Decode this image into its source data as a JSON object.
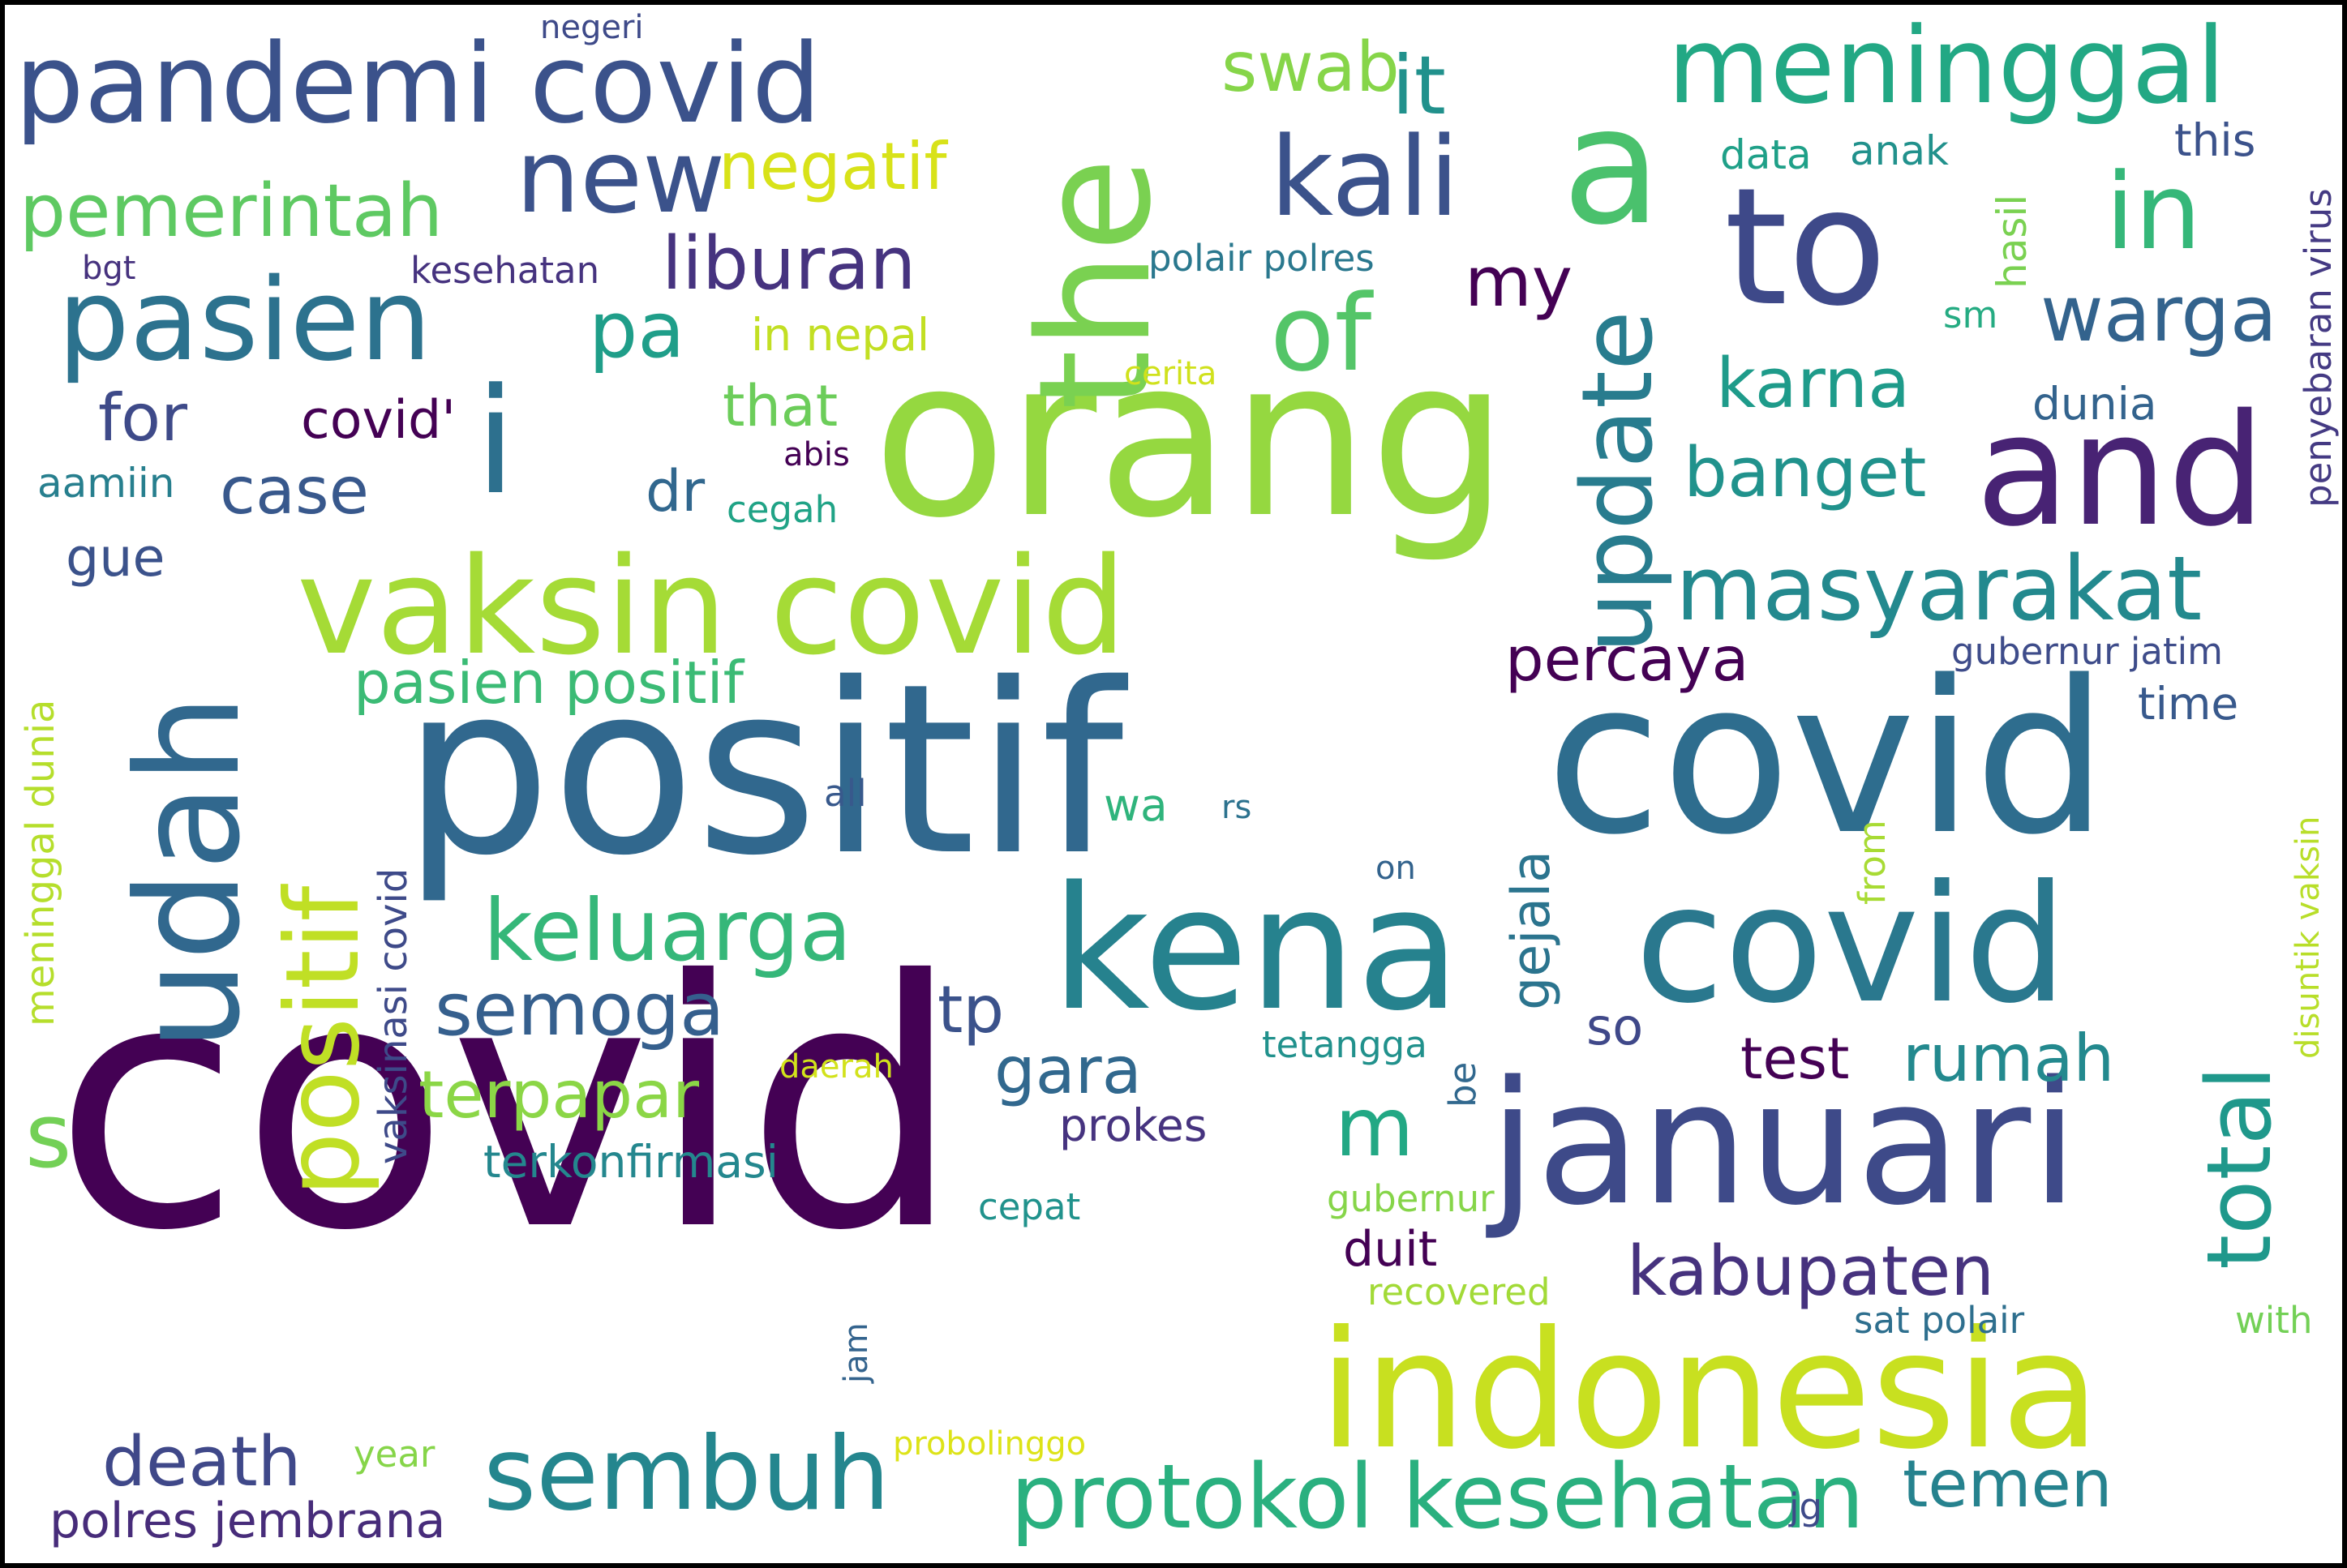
{
  "words": [
    {
      "text": "covid",
      "color": "#440154"
    },
    {
      "text": "positif",
      "color": "#31688e"
    },
    {
      "text": "covid",
      "color": "#2e6d8e"
    },
    {
      "text": "orang",
      "color": "#95d840"
    },
    {
      "text": "kena",
      "color": "#26828e"
    },
    {
      "text": "covid",
      "color": "#2a788e"
    },
    {
      "text": "januari",
      "color": "#3e4a89"
    },
    {
      "text": "indonesia",
      "color": "#c8e020"
    },
    {
      "text": "vaksin covid",
      "color": "#a5db36"
    },
    {
      "text": "pandemi covid",
      "color": "#3b528b"
    },
    {
      "text": "the",
      "color": "#7ad151"
    },
    {
      "text": "udah",
      "color": "#31688e"
    },
    {
      "text": "and",
      "color": "#482374"
    },
    {
      "text": "to",
      "color": "#3e4989"
    },
    {
      "text": "a",
      "color": "#4ac16d"
    },
    {
      "text": "meninggal",
      "color": "#22a884"
    },
    {
      "text": "i",
      "color": "#2d708e"
    },
    {
      "text": "pasien",
      "color": "#2c728e"
    },
    {
      "text": "new",
      "color": "#3b528b"
    },
    {
      "text": "kali",
      "color": "#3b528b"
    },
    {
      "text": "in",
      "color": "#35b779"
    },
    {
      "text": "of",
      "color": "#54c568"
    },
    {
      "text": "update",
      "color": "#287c8e"
    },
    {
      "text": "positif",
      "color": "#c0df25"
    },
    {
      "text": "keluarga",
      "color": "#35b779"
    },
    {
      "text": "sembuh",
      "color": "#24868e"
    },
    {
      "text": "protokol kesehatan",
      "color": "#2ab07f"
    },
    {
      "text": "masyarakat",
      "color": "#23898e"
    },
    {
      "text": "total",
      "color": "#1f988b"
    },
    {
      "text": "warga",
      "color": "#33638d"
    },
    {
      "text": "pemerintah",
      "color": "#5ec962"
    },
    {
      "text": "it",
      "color": "#21918c"
    },
    {
      "text": "swab",
      "color": "#86d549"
    },
    {
      "text": "negatif",
      "color": "#d8e219"
    },
    {
      "text": "liburan",
      "color": "#46337f"
    },
    {
      "text": "pa",
      "color": "#1f9e89"
    },
    {
      "text": "my",
      "color": "#440154"
    },
    {
      "text": "karna",
      "color": "#1e9b8a"
    },
    {
      "text": "banget",
      "color": "#20928c"
    },
    {
      "text": "for",
      "color": "#3e4a89"
    },
    {
      "text": "covid'",
      "color": "#440154"
    },
    {
      "text": "case",
      "color": "#38588c"
    },
    {
      "text": "dr",
      "color": "#31678e"
    },
    {
      "text": "pasien positif",
      "color": "#3bbb75"
    },
    {
      "text": "percaya",
      "color": "#440154"
    },
    {
      "text": "semoga",
      "color": "#355f8d"
    },
    {
      "text": "terpapar",
      "color": "#8bd646"
    },
    {
      "text": "gara",
      "color": "#31688e"
    },
    {
      "text": "tp",
      "color": "#3b528b"
    },
    {
      "text": "m",
      "color": "#22a884"
    },
    {
      "text": "gejala",
      "color": "#2b748e"
    },
    {
      "text": "death",
      "color": "#3f4889"
    },
    {
      "text": "s",
      "color": "#73d056"
    },
    {
      "text": "kabupaten",
      "color": "#46327e"
    },
    {
      "text": "test",
      "color": "#440154"
    },
    {
      "text": "rumah",
      "color": "#23898e"
    },
    {
      "text": "temen",
      "color": "#26828e"
    },
    {
      "text": "so",
      "color": "#3f4889"
    },
    {
      "text": "terkonfirmasi",
      "color": "#24878e"
    },
    {
      "text": "prokes",
      "color": "#46337f"
    },
    {
      "text": "polres jembrana",
      "color": "#472c7a"
    },
    {
      "text": "data",
      "color": "#1fa088"
    },
    {
      "text": "anak",
      "color": "#21918c"
    },
    {
      "text": "this",
      "color": "#3b528b"
    },
    {
      "text": "penyebaran virus",
      "color": "#443a83"
    },
    {
      "text": "hasil",
      "color": "#7ad151"
    },
    {
      "text": "sm",
      "color": "#25ab82"
    },
    {
      "text": "dunia",
      "color": "#33638d"
    },
    {
      "text": "gubernur jatim",
      "color": "#3e4c8a"
    },
    {
      "text": "time",
      "color": "#38598c"
    },
    {
      "text": "polair polres",
      "color": "#2a788e"
    },
    {
      "text": "in nepal",
      "color": "#c2df23"
    },
    {
      "text": "that",
      "color": "#6ccd5a"
    },
    {
      "text": "cerita",
      "color": "#d0e11c"
    },
    {
      "text": "kesehatan",
      "color": "#46337f"
    },
    {
      "text": "bgt",
      "color": "#46327e"
    },
    {
      "text": "negeri",
      "color": "#3e4a89"
    },
    {
      "text": "abis",
      "color": "#440154"
    },
    {
      "text": "cegah",
      "color": "#20a386"
    },
    {
      "text": "aamiin",
      "color": "#277f8e"
    },
    {
      "text": "gue",
      "color": "#3b528b"
    },
    {
      "text": "meninggal dunia",
      "color": "#b5de2b"
    },
    {
      "text": "vaksinasi covid",
      "color": "#3e4a89"
    },
    {
      "text": "all",
      "color": "#38598c"
    },
    {
      "text": "wa",
      "color": "#2fb47c"
    },
    {
      "text": "rs",
      "color": "#2c728e"
    },
    {
      "text": "on",
      "color": "#33638d"
    },
    {
      "text": "from",
      "color": "#a8db34"
    },
    {
      "text": "disuntik vaksin",
      "color": "#b8de29"
    },
    {
      "text": "tetangga",
      "color": "#21918c"
    },
    {
      "text": "be",
      "color": "#31688e"
    },
    {
      "text": "daerah",
      "color": "#d2e21b"
    },
    {
      "text": "cepat",
      "color": "#20928c"
    },
    {
      "text": "gubernur",
      "color": "#86d549"
    },
    {
      "text": "duit",
      "color": "#440154"
    },
    {
      "text": "recovered",
      "color": "#a2da37"
    },
    {
      "text": "sat polair",
      "color": "#2e6f8e"
    },
    {
      "text": "with",
      "color": "#73d056"
    },
    {
      "text": "jam",
      "color": "#33638d"
    },
    {
      "text": "year",
      "color": "#86d549"
    },
    {
      "text": "probolinggo",
      "color": "#dde318"
    },
    {
      "text": "jg",
      "color": "#3e4a89"
    }
  ]
}
